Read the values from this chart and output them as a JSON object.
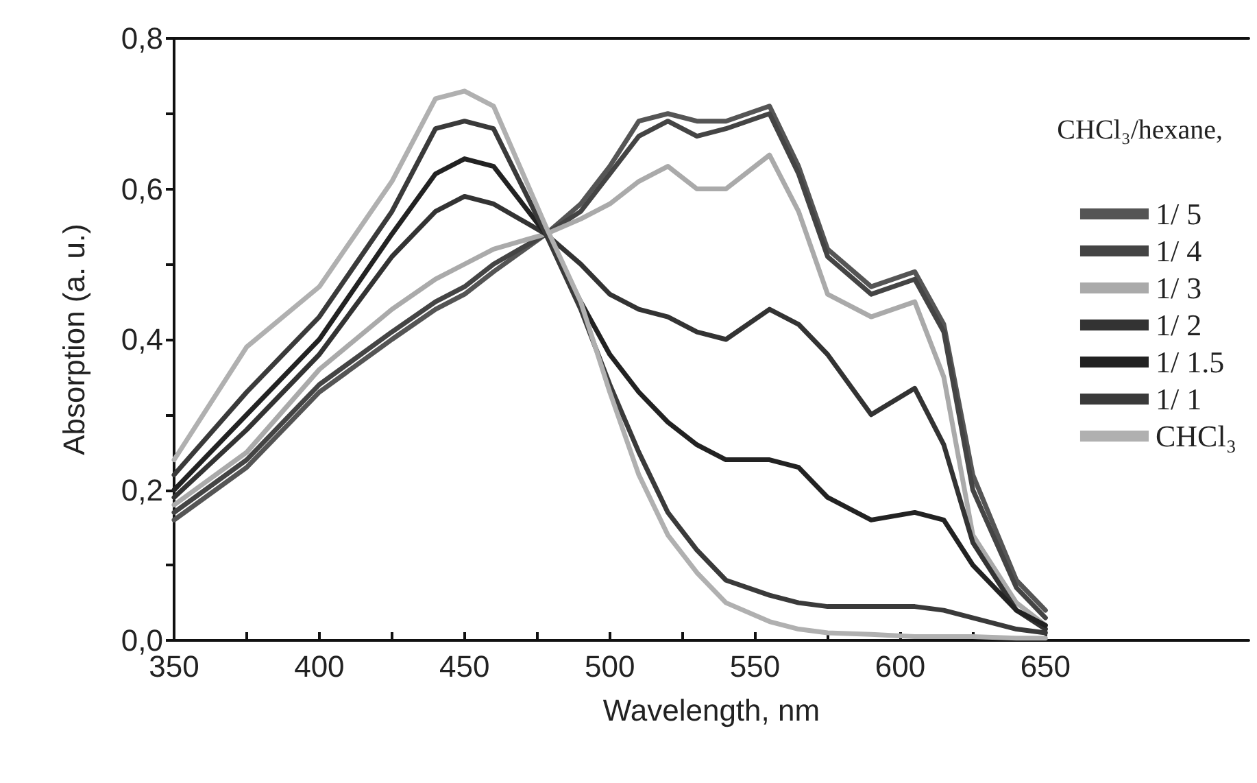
{
  "chart_data": {
    "type": "line",
    "xlabel": "Wavelength, nm",
    "ylabel": "Absorption (a. u.)",
    "legend_title": "CHCl₃/hexane,",
    "x": [
      350,
      375,
      400,
      425,
      440,
      450,
      460,
      478,
      490,
      500,
      510,
      520,
      530,
      540,
      555,
      565,
      575,
      590,
      605,
      615,
      625,
      640,
      650
    ],
    "series": [
      {
        "name": "1/ 5",
        "color": "#555555",
        "values": [
          0.16,
          0.23,
          0.33,
          0.4,
          0.44,
          0.46,
          0.49,
          0.54,
          0.58,
          0.63,
          0.69,
          0.7,
          0.69,
          0.69,
          0.71,
          0.63,
          0.52,
          0.47,
          0.49,
          0.42,
          0.22,
          0.08,
          0.04
        ]
      },
      {
        "name": "1/ 4",
        "color": "#444444",
        "values": [
          0.17,
          0.24,
          0.34,
          0.41,
          0.45,
          0.47,
          0.5,
          0.54,
          0.57,
          0.62,
          0.67,
          0.69,
          0.67,
          0.68,
          0.7,
          0.62,
          0.51,
          0.46,
          0.48,
          0.41,
          0.2,
          0.07,
          0.03
        ]
      },
      {
        "name": "1/ 3",
        "color": "#aaaaaa",
        "values": [
          0.18,
          0.25,
          0.36,
          0.44,
          0.48,
          0.5,
          0.52,
          0.54,
          0.56,
          0.58,
          0.61,
          0.63,
          0.6,
          0.6,
          0.645,
          0.57,
          0.46,
          0.43,
          0.45,
          0.35,
          0.14,
          0.05,
          0.02
        ]
      },
      {
        "name": "1/ 2",
        "color": "#333333",
        "values": [
          0.19,
          0.28,
          0.38,
          0.51,
          0.57,
          0.59,
          0.58,
          0.54,
          0.5,
          0.46,
          0.44,
          0.43,
          0.41,
          0.4,
          0.44,
          0.42,
          0.38,
          0.3,
          0.335,
          0.26,
          0.13,
          0.04,
          0.015
        ]
      },
      {
        "name": "1/ 1.5",
        "color": "#222222",
        "values": [
          0.2,
          0.3,
          0.4,
          0.54,
          0.62,
          0.64,
          0.63,
          0.54,
          0.45,
          0.38,
          0.33,
          0.29,
          0.26,
          0.24,
          0.24,
          0.23,
          0.19,
          0.16,
          0.17,
          0.16,
          0.1,
          0.04,
          0.02
        ]
      },
      {
        "name": "1/ 1",
        "color": "#3a3a3a",
        "values": [
          0.22,
          0.33,
          0.43,
          0.57,
          0.68,
          0.69,
          0.68,
          0.54,
          0.44,
          0.34,
          0.25,
          0.17,
          0.12,
          0.08,
          0.06,
          0.05,
          0.045,
          0.045,
          0.045,
          0.04,
          0.03,
          0.015,
          0.01
        ]
      },
      {
        "name": "CHCl₃",
        "color": "#b0b0b0",
        "values": [
          0.24,
          0.39,
          0.47,
          0.61,
          0.72,
          0.73,
          0.71,
          0.55,
          0.45,
          0.33,
          0.22,
          0.14,
          0.09,
          0.05,
          0.025,
          0.015,
          0.01,
          0.008,
          0.005,
          0.005,
          0.005,
          0.003,
          0.003
        ]
      }
    ],
    "xlim": [
      350,
      720
    ],
    "xticks": [
      350,
      {
        "value": 375,
        "label": null
      },
      400,
      {
        "value": 425,
        "label": null
      },
      450,
      {
        "value": 475,
        "label": null
      },
      500,
      {
        "value": 525,
        "label": null
      },
      550,
      {
        "value": 575,
        "label": null
      },
      600,
      {
        "value": 625,
        "label": null
      },
      650
    ],
    "ylim": [
      0,
      0.8
    ],
    "yticks": [
      {
        "value": 0,
        "label": "0,0"
      },
      {
        "value": 0.1,
        "label": null
      },
      {
        "value": 0.2,
        "label": "0,2"
      },
      {
        "value": 0.3,
        "label": null
      },
      {
        "value": 0.4,
        "label": "0,4"
      },
      {
        "value": 0.5,
        "label": null
      },
      {
        "value": 0.6,
        "label": "0,6"
      },
      {
        "value": 0.7,
        "label": null
      },
      {
        "value": 0.8,
        "label": "0,8"
      }
    ],
    "legend": "top right",
    "marker": "none",
    "line_style": "solid",
    "grid": false
  }
}
